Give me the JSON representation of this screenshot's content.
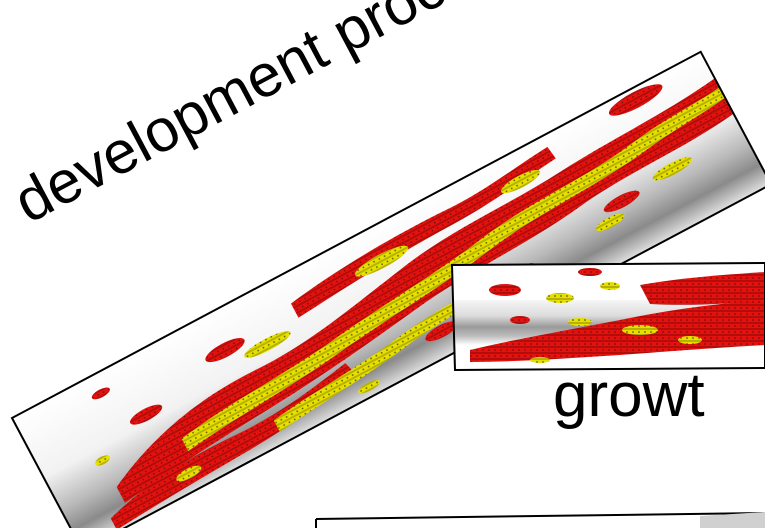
{
  "captions": {
    "diagonal": "development processes",
    "growth": "growt"
  },
  "colors": {
    "background": "#ffffff",
    "frame": "#000000",
    "tube_light": "#ffffff",
    "tube_dark": "#8a8a8a",
    "red_blob": "#e3120f",
    "red_shadow": "#7a0a08",
    "yellow_blob": "#e6e000",
    "yellow_shadow": "#6f6a00"
  },
  "panels": [
    {
      "name": "diagonal-panel",
      "content": "red-yellow-cell-bundle"
    },
    {
      "name": "growth-panel",
      "content": "red-yellow-cell-strand"
    },
    {
      "name": "bottom-panel",
      "content": "partial-frame"
    }
  ]
}
